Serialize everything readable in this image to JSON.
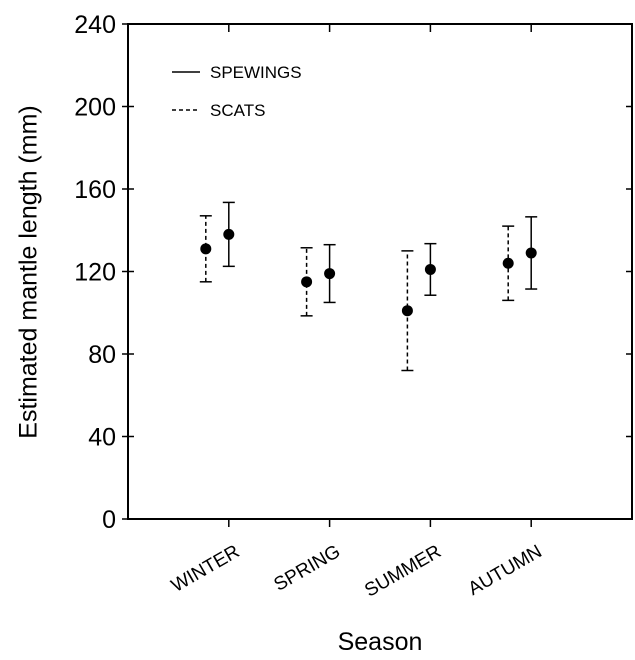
{
  "chart_data": {
    "type": "errorbar",
    "x_label": "Season",
    "y_label": "Estimated mantle length (mm)",
    "categories": [
      "WINTER",
      "SPRING",
      "SUMMER",
      "AUTUMN"
    ],
    "series": [
      {
        "name": "SPEWINGS",
        "color": "#000000",
        "dash": false,
        "values": [
          138,
          119,
          121,
          129
        ],
        "errors": [
          15.5,
          14,
          12.5,
          17.5
        ]
      },
      {
        "name": "SCATS",
        "color": "#000000",
        "dash": true,
        "values": [
          131,
          115,
          101,
          124
        ],
        "errors": [
          16,
          16.5,
          29,
          18
        ]
      }
    ],
    "ylim": [
      0,
      240
    ],
    "yticks": [
      0,
      40,
      80,
      120,
      160,
      200,
      240
    ]
  }
}
